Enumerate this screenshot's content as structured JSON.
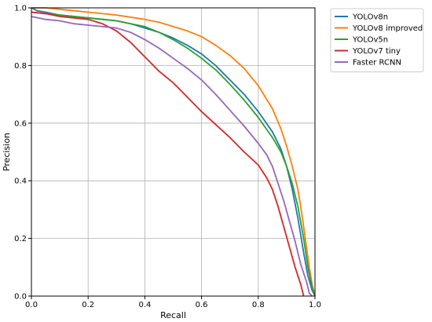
{
  "chart_data": {
    "type": "line",
    "xlabel": "Recall",
    "ylabel": "Precision",
    "xlim": [
      0,
      1
    ],
    "ylim": [
      0,
      1
    ],
    "x_ticks": [
      "0.0",
      "0.2",
      "0.4",
      "0.6",
      "0.8",
      "1.0"
    ],
    "y_ticks": [
      "0.0",
      "0.2",
      "0.4",
      "0.6",
      "0.8",
      "1.0"
    ],
    "grid": true,
    "legend_position": "outside-right-top",
    "series": [
      {
        "name": "YOLOv8n",
        "color": "#1f77b4",
        "points": [
          [
            0.0,
            1.0
          ],
          [
            0.02,
            0.99
          ],
          [
            0.05,
            0.985
          ],
          [
            0.1,
            0.975
          ],
          [
            0.2,
            0.965
          ],
          [
            0.3,
            0.955
          ],
          [
            0.35,
            0.945
          ],
          [
            0.4,
            0.93
          ],
          [
            0.45,
            0.915
          ],
          [
            0.5,
            0.895
          ],
          [
            0.55,
            0.87
          ],
          [
            0.6,
            0.84
          ],
          [
            0.65,
            0.8
          ],
          [
            0.7,
            0.75
          ],
          [
            0.75,
            0.7
          ],
          [
            0.8,
            0.64
          ],
          [
            0.85,
            0.57
          ],
          [
            0.88,
            0.51
          ],
          [
            0.9,
            0.45
          ],
          [
            0.92,
            0.37
          ],
          [
            0.94,
            0.27
          ],
          [
            0.96,
            0.15
          ],
          [
            0.975,
            0.07
          ],
          [
            0.99,
            0.02
          ],
          [
            1.0,
            0.0
          ]
        ]
      },
      {
        "name": "YOLOv8 improved",
        "color": "#ff7f0e",
        "points": [
          [
            0.0,
            1.0
          ],
          [
            0.05,
            1.0
          ],
          [
            0.1,
            0.995
          ],
          [
            0.15,
            0.99
          ],
          [
            0.2,
            0.985
          ],
          [
            0.3,
            0.975
          ],
          [
            0.4,
            0.96
          ],
          [
            0.45,
            0.95
          ],
          [
            0.5,
            0.935
          ],
          [
            0.55,
            0.92
          ],
          [
            0.6,
            0.9
          ],
          [
            0.65,
            0.87
          ],
          [
            0.7,
            0.835
          ],
          [
            0.75,
            0.79
          ],
          [
            0.8,
            0.73
          ],
          [
            0.85,
            0.65
          ],
          [
            0.88,
            0.58
          ],
          [
            0.9,
            0.52
          ],
          [
            0.92,
            0.45
          ],
          [
            0.94,
            0.37
          ],
          [
            0.95,
            0.31
          ],
          [
            0.96,
            0.24
          ],
          [
            0.97,
            0.17
          ],
          [
            0.98,
            0.1
          ],
          [
            0.99,
            0.04
          ],
          [
            1.0,
            0.0
          ]
        ]
      },
      {
        "name": "YOLOv5n",
        "color": "#2ca02c",
        "points": [
          [
            0.0,
            0.985
          ],
          [
            0.05,
            0.98
          ],
          [
            0.1,
            0.975
          ],
          [
            0.2,
            0.965
          ],
          [
            0.3,
            0.955
          ],
          [
            0.35,
            0.945
          ],
          [
            0.4,
            0.935
          ],
          [
            0.45,
            0.915
          ],
          [
            0.5,
            0.89
          ],
          [
            0.55,
            0.86
          ],
          [
            0.6,
            0.825
          ],
          [
            0.65,
            0.785
          ],
          [
            0.7,
            0.735
          ],
          [
            0.75,
            0.68
          ],
          [
            0.8,
            0.62
          ],
          [
            0.85,
            0.55
          ],
          [
            0.88,
            0.5
          ],
          [
            0.9,
            0.45
          ],
          [
            0.92,
            0.39
          ],
          [
            0.94,
            0.31
          ],
          [
            0.96,
            0.2
          ],
          [
            0.975,
            0.1
          ],
          [
            0.99,
            0.03
          ],
          [
            1.0,
            0.0
          ]
        ]
      },
      {
        "name": "YOLOv7 tiny",
        "color": "#d62728",
        "points": [
          [
            0.0,
            0.985
          ],
          [
            0.05,
            0.98
          ],
          [
            0.1,
            0.97
          ],
          [
            0.2,
            0.96
          ],
          [
            0.25,
            0.945
          ],
          [
            0.3,
            0.92
          ],
          [
            0.35,
            0.88
          ],
          [
            0.4,
            0.83
          ],
          [
            0.45,
            0.78
          ],
          [
            0.5,
            0.74
          ],
          [
            0.55,
            0.69
          ],
          [
            0.6,
            0.64
          ],
          [
            0.65,
            0.595
          ],
          [
            0.7,
            0.55
          ],
          [
            0.75,
            0.5
          ],
          [
            0.8,
            0.455
          ],
          [
            0.83,
            0.41
          ],
          [
            0.85,
            0.37
          ],
          [
            0.87,
            0.31
          ],
          [
            0.89,
            0.24
          ],
          [
            0.91,
            0.17
          ],
          [
            0.93,
            0.1
          ],
          [
            0.95,
            0.04
          ],
          [
            0.96,
            0.0
          ]
        ]
      },
      {
        "name": "Faster RCNN",
        "color": "#9467bd",
        "points": [
          [
            0.0,
            0.97
          ],
          [
            0.05,
            0.96
          ],
          [
            0.1,
            0.955
          ],
          [
            0.15,
            0.945
          ],
          [
            0.2,
            0.94
          ],
          [
            0.3,
            0.93
          ],
          [
            0.35,
            0.915
          ],
          [
            0.4,
            0.89
          ],
          [
            0.45,
            0.86
          ],
          [
            0.5,
            0.825
          ],
          [
            0.55,
            0.79
          ],
          [
            0.6,
            0.75
          ],
          [
            0.65,
            0.7
          ],
          [
            0.7,
            0.645
          ],
          [
            0.75,
            0.59
          ],
          [
            0.8,
            0.53
          ],
          [
            0.83,
            0.49
          ],
          [
            0.85,
            0.45
          ],
          [
            0.87,
            0.39
          ],
          [
            0.89,
            0.33
          ],
          [
            0.91,
            0.26
          ],
          [
            0.93,
            0.19
          ],
          [
            0.95,
            0.11
          ],
          [
            0.97,
            0.05
          ],
          [
            0.98,
            0.01
          ],
          [
            0.99,
            0.0
          ]
        ]
      }
    ]
  }
}
